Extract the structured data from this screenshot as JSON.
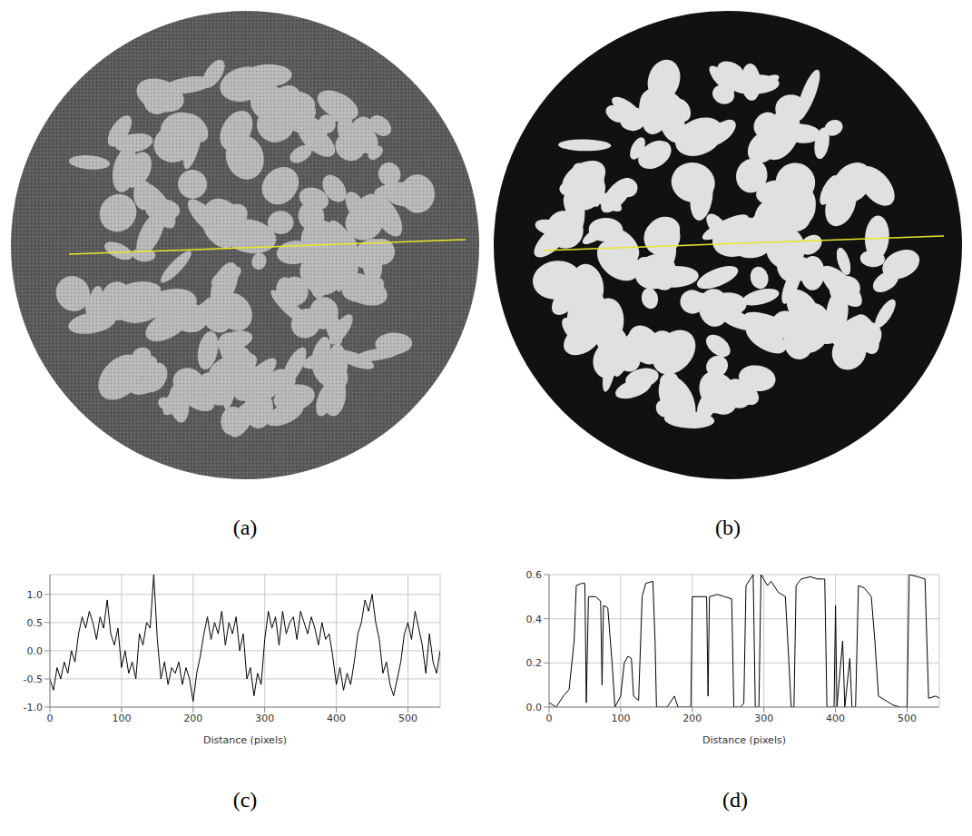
{
  "images": [
    {
      "label": "(a)"
    },
    {
      "label": "(b)"
    }
  ],
  "chart_data": [
    {
      "label": "(c)",
      "type": "line",
      "x_label": "Distance (pixels)",
      "color": "#000000",
      "grid": true,
      "xlim": [
        0,
        545
      ],
      "xticks": [
        0,
        100,
        200,
        300,
        400,
        500
      ],
      "ylim": [
        -1.0,
        1.35
      ],
      "yticks": [
        {
          "value": -1.0,
          "label": "-1.0"
        },
        {
          "value": -0.5,
          "label": "-0.5"
        },
        {
          "value": 0.0,
          "label": "0.0"
        },
        {
          "value": 0.5,
          "label": "0.5"
        },
        {
          "value": 1.0,
          "label": "1.0"
        }
      ],
      "x": [
        0,
        5,
        10,
        15,
        20,
        25,
        30,
        35,
        40,
        45,
        50,
        55,
        60,
        65,
        70,
        75,
        80,
        85,
        90,
        95,
        100,
        105,
        110,
        115,
        120,
        125,
        130,
        135,
        140,
        145,
        150,
        155,
        160,
        165,
        170,
        175,
        180,
        185,
        190,
        195,
        200,
        205,
        210,
        215,
        220,
        225,
        230,
        235,
        240,
        245,
        250,
        255,
        260,
        265,
        270,
        275,
        280,
        285,
        290,
        295,
        300,
        305,
        310,
        315,
        320,
        325,
        330,
        335,
        340,
        345,
        350,
        355,
        360,
        365,
        370,
        375,
        380,
        385,
        390,
        395,
        400,
        405,
        410,
        415,
        420,
        425,
        430,
        435,
        440,
        445,
        450,
        455,
        460,
        465,
        470,
        475,
        480,
        485,
        490,
        495,
        500,
        505,
        510,
        515,
        520,
        525,
        530,
        535,
        540,
        545
      ],
      "values": [
        -0.5,
        -0.7,
        -0.3,
        -0.5,
        -0.2,
        -0.4,
        0.0,
        -0.2,
        0.3,
        0.6,
        0.4,
        0.7,
        0.5,
        0.2,
        0.6,
        0.4,
        0.9,
        0.3,
        0.1,
        0.4,
        -0.3,
        0.0,
        -0.4,
        -0.2,
        -0.5,
        0.3,
        0.1,
        0.5,
        0.4,
        1.35,
        0.2,
        -0.5,
        -0.2,
        -0.6,
        -0.3,
        -0.4,
        -0.2,
        -0.6,
        -0.3,
        -0.5,
        -0.9,
        -0.4,
        -0.1,
        0.3,
        0.6,
        0.2,
        0.5,
        0.3,
        0.7,
        0.1,
        0.5,
        0.3,
        0.6,
        0.0,
        0.3,
        -0.5,
        -0.3,
        -0.8,
        -0.4,
        -0.6,
        0.2,
        0.7,
        0.4,
        0.6,
        0.1,
        0.7,
        0.3,
        0.5,
        0.6,
        0.2,
        0.7,
        0.5,
        0.3,
        0.6,
        0.4,
        0.1,
        0.5,
        0.2,
        0.3,
        -0.1,
        -0.6,
        -0.3,
        -0.7,
        -0.4,
        -0.6,
        -0.2,
        0.3,
        0.5,
        0.9,
        0.7,
        1.0,
        0.5,
        0.2,
        -0.4,
        -0.2,
        -0.6,
        -0.8,
        -0.5,
        -0.2,
        0.3,
        0.5,
        0.2,
        0.7,
        0.4,
        0.1,
        -0.4,
        0.3,
        -0.2,
        -0.4,
        0.0
      ]
    },
    {
      "label": "(d)",
      "type": "line",
      "x_label": "Distance (pixels)",
      "color": "#000000",
      "grid": true,
      "xlim": [
        0,
        545
      ],
      "xticks": [
        0,
        100,
        200,
        300,
        400,
        500
      ],
      "ylim": [
        0.0,
        0.6
      ],
      "yticks": [
        {
          "value": 0.0,
          "label": "0.0"
        },
        {
          "value": 0.2,
          "label": "0.2"
        },
        {
          "value": 0.4,
          "label": "0.4"
        },
        {
          "value": 0.6,
          "label": "0.6"
        }
      ],
      "x": [
        0,
        10,
        20,
        28,
        35,
        38,
        45,
        50,
        52,
        55,
        65,
        72,
        74,
        76,
        82,
        88,
        92,
        100,
        105,
        110,
        115,
        118,
        125,
        130,
        135,
        145,
        148,
        150,
        165,
        175,
        180,
        190,
        198,
        200,
        215,
        220,
        222,
        224,
        235,
        245,
        255,
        258,
        268,
        272,
        275,
        285,
        288,
        293,
        296,
        305,
        310,
        320,
        330,
        335,
        338,
        342,
        345,
        352,
        365,
        375,
        385,
        388,
        398,
        400,
        402,
        410,
        413,
        420,
        423,
        428,
        432,
        440,
        450,
        455,
        460,
        480,
        490,
        500,
        503,
        515,
        525,
        530,
        540,
        545
      ],
      "values": [
        0.02,
        0.0,
        0.05,
        0.08,
        0.3,
        0.55,
        0.56,
        0.56,
        0.02,
        0.5,
        0.5,
        0.48,
        0.1,
        0.46,
        0.45,
        0.2,
        0.0,
        0.05,
        0.2,
        0.23,
        0.22,
        0.05,
        0.03,
        0.5,
        0.56,
        0.57,
        0.3,
        0.0,
        0.0,
        0.05,
        0.0,
        0.0,
        0.0,
        0.5,
        0.5,
        0.5,
        0.05,
        0.5,
        0.51,
        0.5,
        0.49,
        0.0,
        0.0,
        0.02,
        0.55,
        0.6,
        0.0,
        0.0,
        0.6,
        0.55,
        0.57,
        0.52,
        0.5,
        0.2,
        0.0,
        0.0,
        0.55,
        0.58,
        0.59,
        0.58,
        0.58,
        0.0,
        0.0,
        0.46,
        0.0,
        0.3,
        0.0,
        0.22,
        0.0,
        0.0,
        0.55,
        0.54,
        0.5,
        0.3,
        0.05,
        0.01,
        0.0,
        0.0,
        0.6,
        0.59,
        0.58,
        0.04,
        0.05,
        0.04
      ]
    }
  ]
}
